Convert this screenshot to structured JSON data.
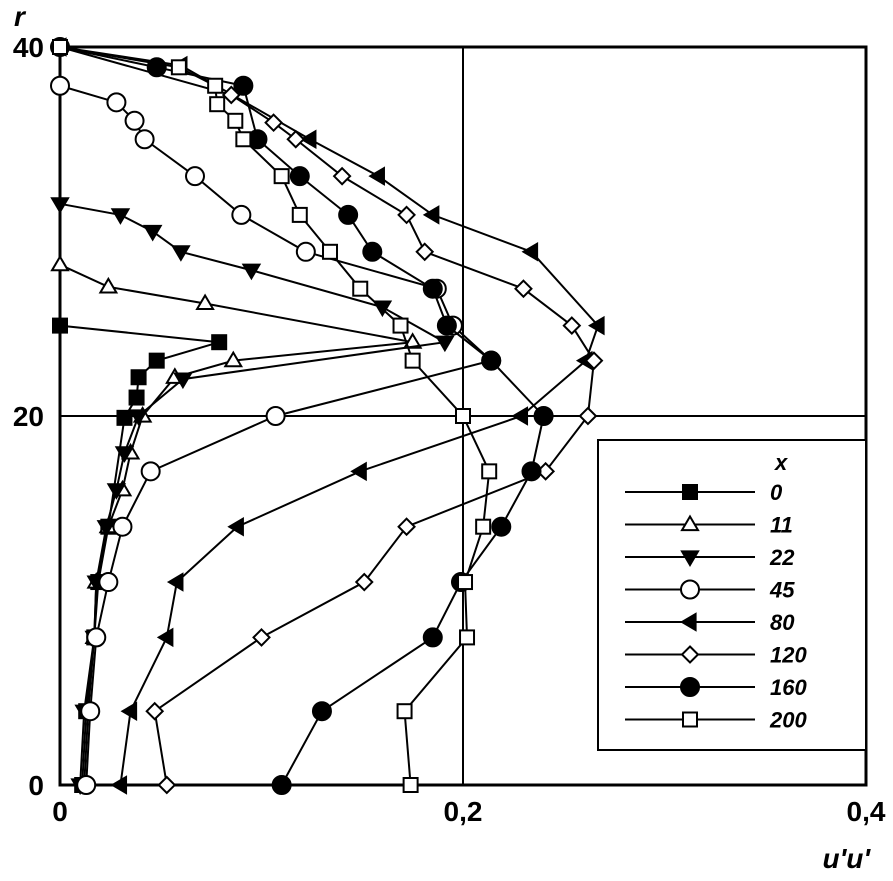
{
  "chart_data": {
    "type": "line",
    "x_label": "u'u'",
    "y_label": "r",
    "legend_title": "x",
    "xlim": [
      0,
      0.4
    ],
    "ylim": [
      0,
      40
    ],
    "xticks": [
      0,
      {
        "value": 0.2,
        "label": "0,2"
      },
      {
        "value": 0.4,
        "label": "0,4"
      }
    ],
    "yticks": [
      0,
      20,
      40
    ],
    "grid": true,
    "legend": "lower right",
    "series": [
      {
        "name": "0",
        "marker": "square",
        "filled": true,
        "color": "#000000",
        "x": [
          0,
          0.079,
          0.048,
          0.039,
          0.038,
          0.032,
          0.024,
          0.019,
          0.017,
          0.013,
          0.011
        ],
        "values": [
          24.9,
          24.0,
          23.0,
          22.1,
          21.0,
          19.9,
          14.0,
          11.0,
          8.0,
          4.0,
          0
        ]
      },
      {
        "name": "11",
        "marker": "triangle-up",
        "filled": false,
        "color": "#000000",
        "x": [
          0,
          0.024,
          0.072,
          0.175,
          0.086,
          0.057,
          0.041,
          0.035,
          0.031,
          0.024,
          0.018,
          0.017,
          0.014,
          0.012
        ],
        "values": [
          28.2,
          27.0,
          26.1,
          24.0,
          23.0,
          22.1,
          20.0,
          18.0,
          16.0,
          14.0,
          11.0,
          8.0,
          4.0,
          0
        ]
      },
      {
        "name": "22",
        "marker": "triangle-down",
        "filled": true,
        "color": "#000000",
        "x": [
          0,
          0.03,
          0.046,
          0.06,
          0.095,
          0.16,
          0.191,
          0.061,
          0.039,
          0.032,
          0.028,
          0.023,
          0.018,
          0.017,
          0.012,
          0.01
        ],
        "values": [
          31.5,
          30.9,
          30.0,
          28.9,
          27.9,
          25.9,
          24.0,
          22.0,
          20.0,
          18.0,
          16.0,
          14.0,
          11.0,
          8.0,
          4.0,
          0
        ]
      },
      {
        "name": "45",
        "marker": "circle",
        "filled": false,
        "color": "#000000",
        "x": [
          0,
          0.028,
          0.037,
          0.042,
          0.067,
          0.09,
          0.122,
          0.187,
          0.195,
          0.214,
          0.107,
          0.045,
          0.031,
          0.024,
          0.018,
          0.015,
          0.013
        ],
        "values": [
          37.9,
          37.0,
          36.0,
          35.0,
          33.0,
          30.9,
          28.9,
          26.9,
          24.9,
          23.0,
          20.0,
          17.0,
          14.0,
          11.0,
          8.0,
          4.0,
          0
        ]
      },
      {
        "name": "80",
        "marker": "triangle-left",
        "filled": true,
        "color": "#000000",
        "x": [
          0,
          0.06,
          0.124,
          0.158,
          0.185,
          0.234,
          0.267,
          0.261,
          0.229,
          0.149,
          0.088,
          0.058,
          0.053,
          0.035,
          0.03
        ],
        "values": [
          40,
          39,
          35.0,
          33.0,
          30.9,
          28.9,
          24.9,
          23.0,
          20.0,
          17.0,
          14.0,
          11.0,
          8.0,
          4.0,
          0
        ]
      },
      {
        "name": "120",
        "marker": "diamond",
        "filled": false,
        "color": "#000000",
        "x": [
          0,
          0.085,
          0.106,
          0.117,
          0.14,
          0.172,
          0.181,
          0.23,
          0.254,
          0.265,
          0.262,
          0.241,
          0.172,
          0.151,
          0.1,
          0.047,
          0.053
        ],
        "values": [
          40,
          37.4,
          35.9,
          35.0,
          33.0,
          30.9,
          28.9,
          26.9,
          24.9,
          23.0,
          20.0,
          17.0,
          14.0,
          11.0,
          8.0,
          4.0,
          0
        ]
      },
      {
        "name": "160",
        "marker": "circle",
        "filled": true,
        "color": "#000000",
        "x": [
          0,
          0.048,
          0.091,
          0.098,
          0.119,
          0.143,
          0.155,
          0.185,
          0.192,
          0.214,
          0.24,
          0.234,
          0.219,
          0.199,
          0.185,
          0.13,
          0.11
        ],
        "values": [
          40,
          38.9,
          37.9,
          35.0,
          33.0,
          30.9,
          28.9,
          26.9,
          24.9,
          23.0,
          20.0,
          17.0,
          14.0,
          11.0,
          8.0,
          4.0,
          0
        ]
      },
      {
        "name": "200",
        "marker": "square",
        "filled": false,
        "color": "#000000",
        "x": [
          0,
          0.059,
          0.077,
          0.078,
          0.087,
          0.091,
          0.11,
          0.119,
          0.134,
          0.149,
          0.169,
          0.175,
          0.2,
          0.213,
          0.21,
          0.201,
          0.202,
          0.171,
          0.174
        ],
        "values": [
          40,
          38.9,
          37.9,
          36.9,
          36.0,
          35.0,
          33.0,
          30.9,
          28.9,
          26.9,
          24.9,
          23.0,
          20.0,
          17.0,
          14.0,
          11.0,
          8.0,
          4.0,
          0
        ]
      }
    ]
  }
}
